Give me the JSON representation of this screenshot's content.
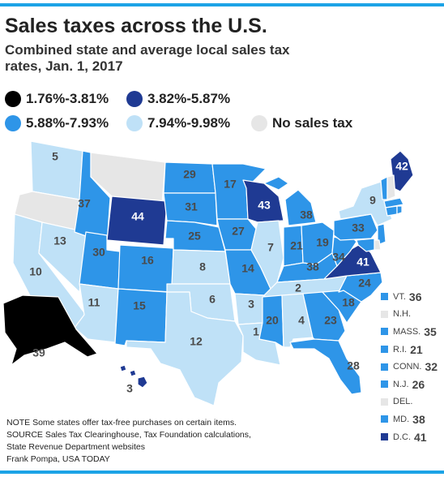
{
  "header": {
    "title": "Sales taxes across the U.S.",
    "subtitle": "Combined state and average local sales tax rates, Jan. 1, 2017"
  },
  "legend": [
    {
      "label": "1.76%-3.81%",
      "color": "#000000"
    },
    {
      "label": "3.82%-5.87%",
      "color": "#1f3a93"
    },
    {
      "label": "5.88%-7.93%",
      "color": "#2e95e8"
    },
    {
      "label": "7.94%-9.98%",
      "color": "#bfe1f7"
    },
    {
      "label": "No sales tax",
      "color": "#e6e6e6"
    }
  ],
  "states": [
    {
      "abbr": "WA",
      "rank": "5",
      "tier": "light"
    },
    {
      "abbr": "OR",
      "rank": "",
      "tier": "none"
    },
    {
      "abbr": "CA",
      "rank": "10",
      "tier": "light"
    },
    {
      "abbr": "NV",
      "rank": "13",
      "tier": "light"
    },
    {
      "abbr": "ID",
      "rank": "37",
      "tier": "mid"
    },
    {
      "abbr": "MT",
      "rank": "",
      "tier": "none"
    },
    {
      "abbr": "WY",
      "rank": "44",
      "tier": "dark"
    },
    {
      "abbr": "UT",
      "rank": "30",
      "tier": "mid"
    },
    {
      "abbr": "AZ",
      "rank": "11",
      "tier": "light"
    },
    {
      "abbr": "CO",
      "rank": "16",
      "tier": "mid"
    },
    {
      "abbr": "NM",
      "rank": "15",
      "tier": "mid"
    },
    {
      "abbr": "ND",
      "rank": "29",
      "tier": "mid"
    },
    {
      "abbr": "SD",
      "rank": "31",
      "tier": "mid"
    },
    {
      "abbr": "NE",
      "rank": "25",
      "tier": "mid"
    },
    {
      "abbr": "KS",
      "rank": "8",
      "tier": "light"
    },
    {
      "abbr": "OK",
      "rank": "6",
      "tier": "light"
    },
    {
      "abbr": "TX",
      "rank": "12",
      "tier": "light"
    },
    {
      "abbr": "MN",
      "rank": "17",
      "tier": "mid"
    },
    {
      "abbr": "IA",
      "rank": "27",
      "tier": "mid"
    },
    {
      "abbr": "MO",
      "rank": "14",
      "tier": "mid"
    },
    {
      "abbr": "AR",
      "rank": "3",
      "tier": "light"
    },
    {
      "abbr": "LA",
      "rank": "1",
      "tier": "light"
    },
    {
      "abbr": "WI",
      "rank": "43",
      "tier": "dark"
    },
    {
      "abbr": "IL",
      "rank": "7",
      "tier": "light"
    },
    {
      "abbr": "MI",
      "rank": "38",
      "tier": "mid"
    },
    {
      "abbr": "IN",
      "rank": "21",
      "tier": "mid"
    },
    {
      "abbr": "OH",
      "rank": "19",
      "tier": "mid"
    },
    {
      "abbr": "KY",
      "rank": "38",
      "tier": "mid"
    },
    {
      "abbr": "TN",
      "rank": "2",
      "tier": "light"
    },
    {
      "abbr": "MS",
      "rank": "20",
      "tier": "mid"
    },
    {
      "abbr": "AL",
      "rank": "4",
      "tier": "light"
    },
    {
      "abbr": "GA",
      "rank": "23",
      "tier": "mid"
    },
    {
      "abbr": "FL",
      "rank": "28",
      "tier": "mid"
    },
    {
      "abbr": "SC",
      "rank": "18",
      "tier": "mid"
    },
    {
      "abbr": "NC",
      "rank": "24",
      "tier": "mid"
    },
    {
      "abbr": "VA",
      "rank": "41",
      "tier": "dark"
    },
    {
      "abbr": "WV",
      "rank": "34",
      "tier": "mid"
    },
    {
      "abbr": "PA",
      "rank": "33",
      "tier": "mid"
    },
    {
      "abbr": "NY",
      "rank": "9",
      "tier": "light"
    },
    {
      "abbr": "ME",
      "rank": "42",
      "tier": "dark"
    },
    {
      "abbr": "AK",
      "rank": "39",
      "tier": "black"
    },
    {
      "abbr": "HI",
      "rank": "3",
      "tier": "light"
    }
  ],
  "northeast_key": [
    {
      "abbr": "VT.",
      "rank": "36",
      "tier": "mid"
    },
    {
      "abbr": "N.H.",
      "rank": "",
      "tier": "none"
    },
    {
      "abbr": "MASS.",
      "rank": "35",
      "tier": "mid"
    },
    {
      "abbr": "R.I.",
      "rank": "21",
      "tier": "mid"
    },
    {
      "abbr": "CONN.",
      "rank": "32",
      "tier": "mid"
    },
    {
      "abbr": "N.J.",
      "rank": "26",
      "tier": "mid"
    },
    {
      "abbr": "DEL.",
      "rank": "",
      "tier": "none"
    },
    {
      "abbr": "MD.",
      "rank": "38",
      "tier": "mid"
    },
    {
      "abbr": "D.C.",
      "rank": "41",
      "tier": "dark"
    }
  ],
  "footer": {
    "note": "NOTE Some states offer tax-free purchases on certain items.",
    "source_1": "SOURCE Sales Tax Clearinghouse, Tax Foundation calculations,",
    "source_2": "State Revenue Department websites",
    "credit": "Frank Pompa, USA TODAY"
  },
  "colors": {
    "black": "#000000",
    "dark": "#1f3a93",
    "mid": "#2e95e8",
    "light": "#bfe1f7",
    "none": "#e6e6e6",
    "rule": "#1ca3e6"
  }
}
